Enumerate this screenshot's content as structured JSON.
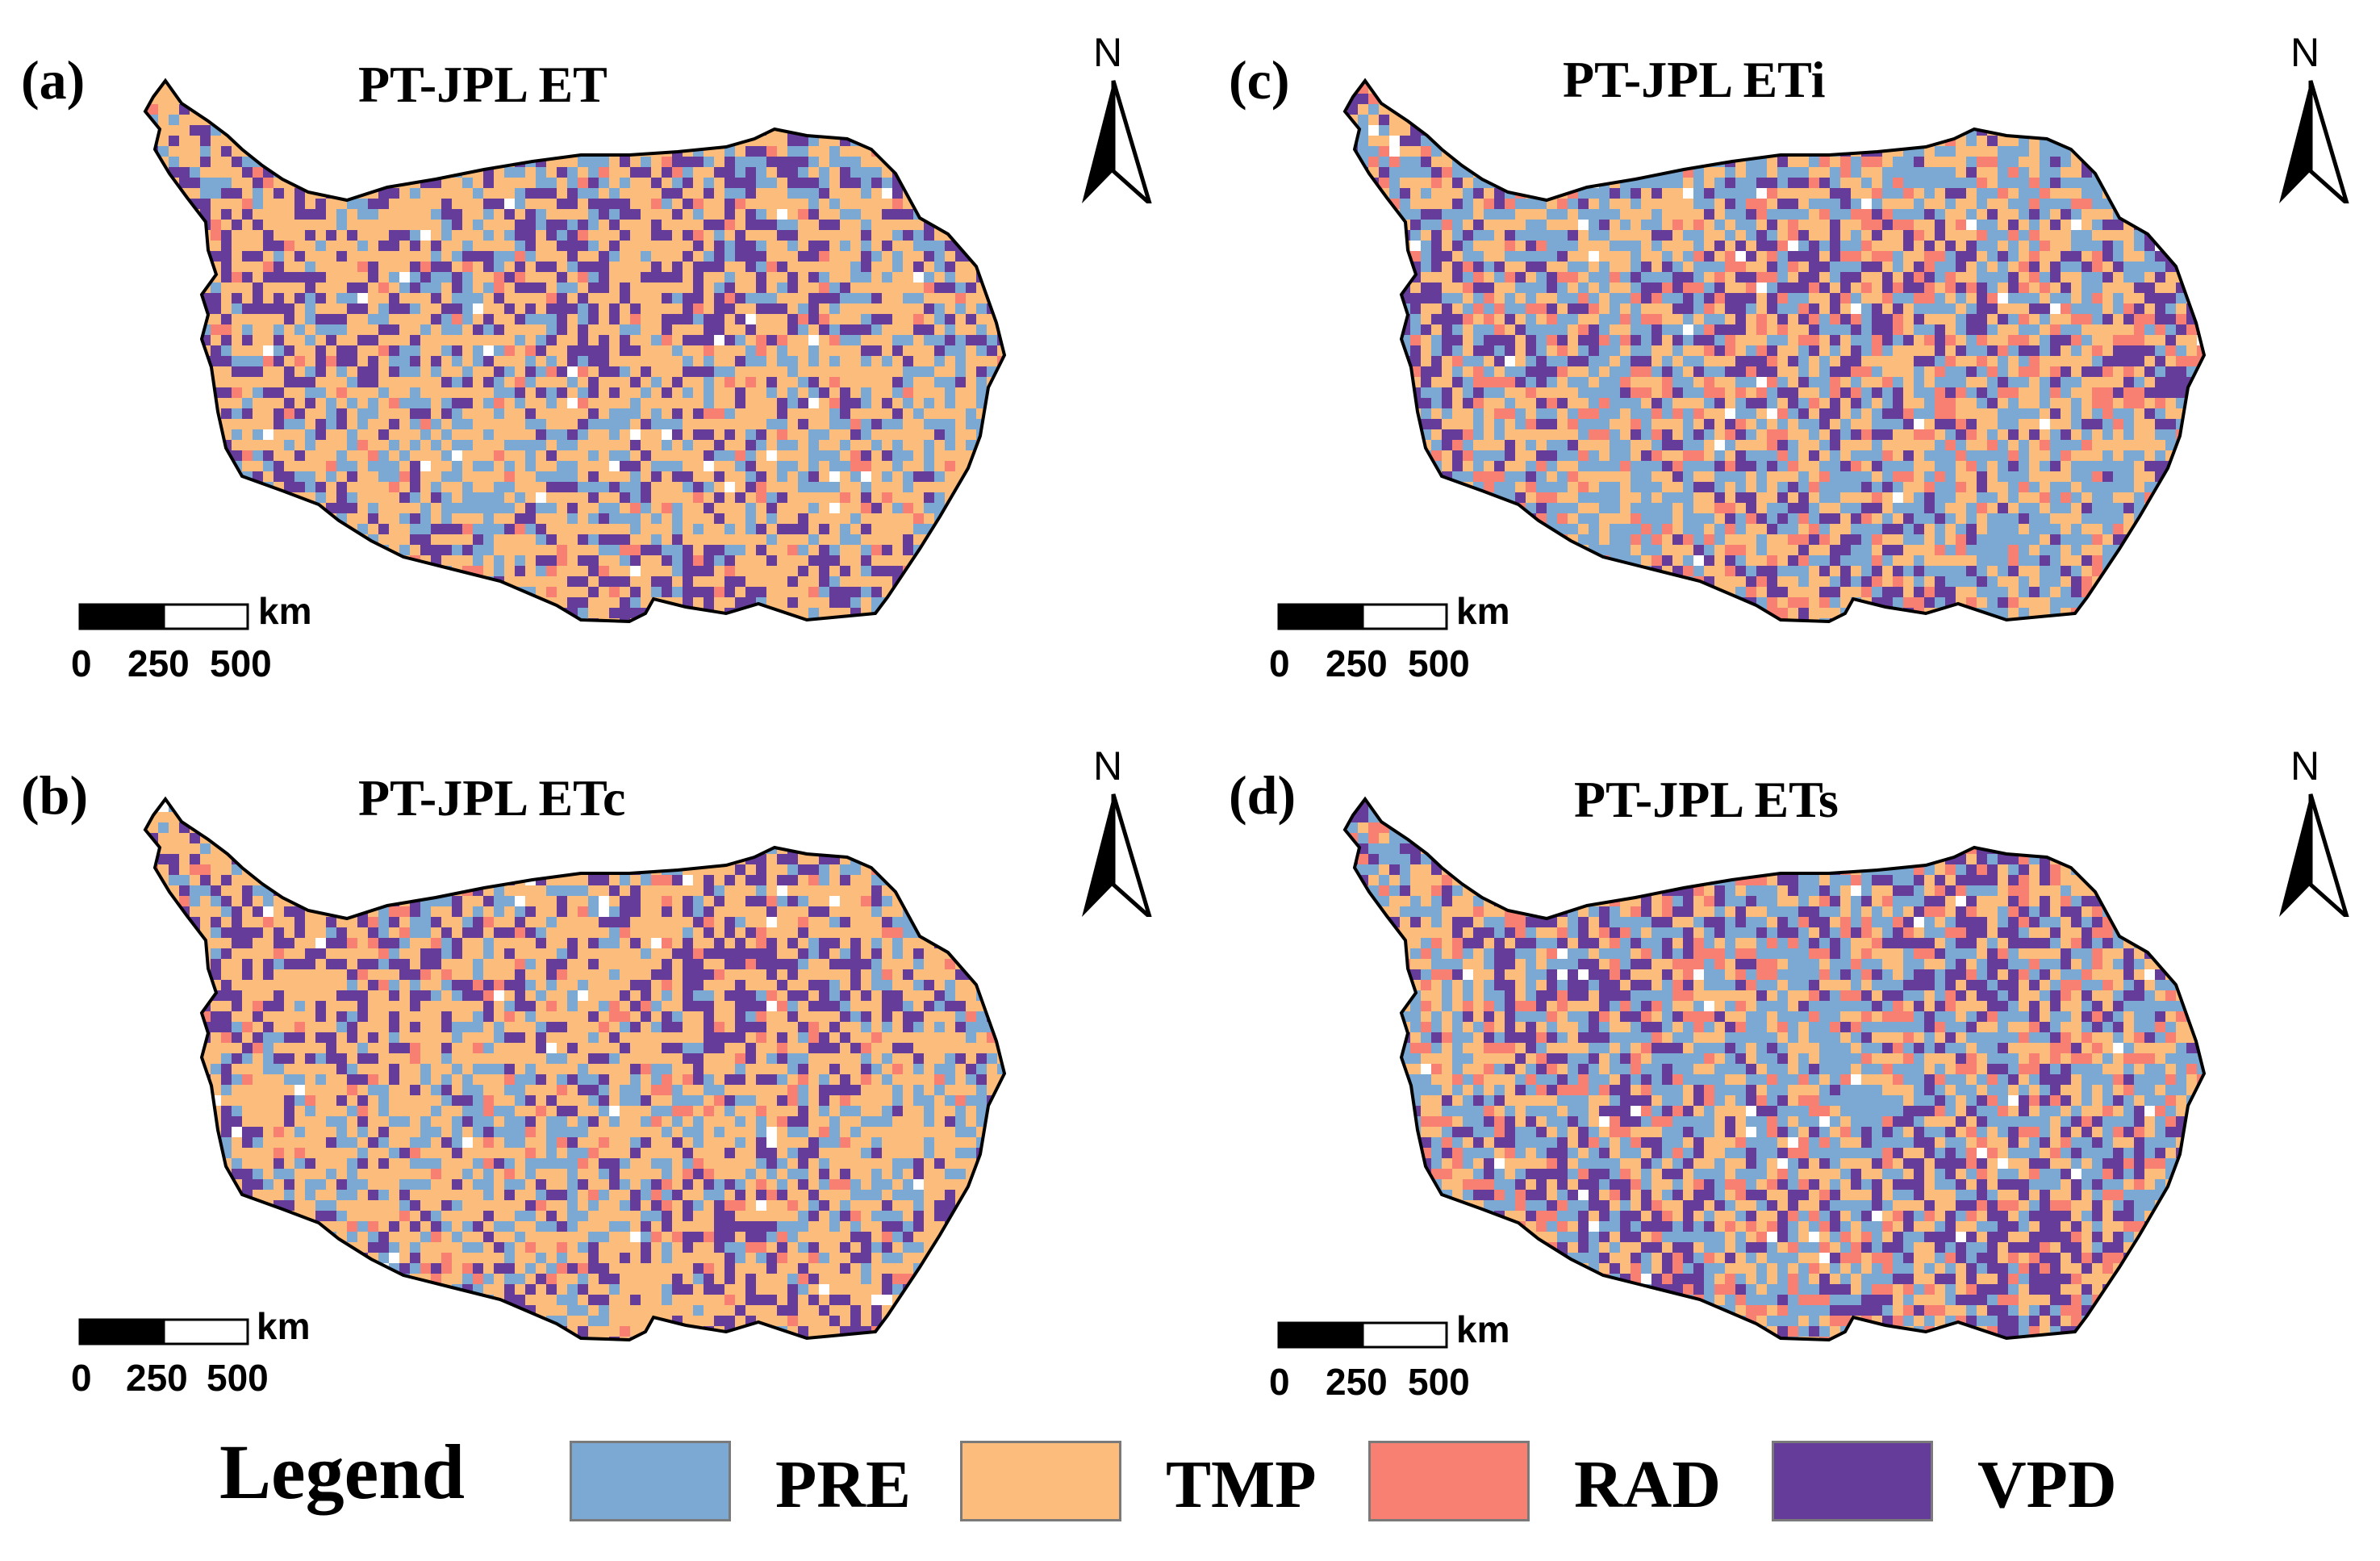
{
  "panels": [
    {
      "label": "(a)",
      "title": "PT-JPL ET",
      "mix": [
        0.22,
        0.5,
        0.05,
        0.23
      ]
    },
    {
      "label": "(b)",
      "title": "PT-JPL ETc",
      "mix": [
        0.2,
        0.52,
        0.06,
        0.22
      ]
    },
    {
      "label": "(c)",
      "title": "PT-JPL ETi",
      "mix": [
        0.34,
        0.34,
        0.12,
        0.2
      ]
    },
    {
      "label": "(d)",
      "title": "PT-JPL ETs",
      "mix": [
        0.36,
        0.28,
        0.14,
        0.22
      ]
    }
  ],
  "north_label": "N",
  "scale": {
    "unit": "km",
    "ticks": [
      "0",
      "250",
      "500"
    ]
  },
  "legend": {
    "title": "Legend",
    "items": [
      {
        "label": "PRE",
        "color": "#7ba9d3"
      },
      {
        "label": "TMP",
        "color": "#fbbc7c"
      },
      {
        "label": "RAD",
        "color": "#f78073"
      },
      {
        "label": "VPD",
        "color": "#663c9b"
      }
    ]
  }
}
